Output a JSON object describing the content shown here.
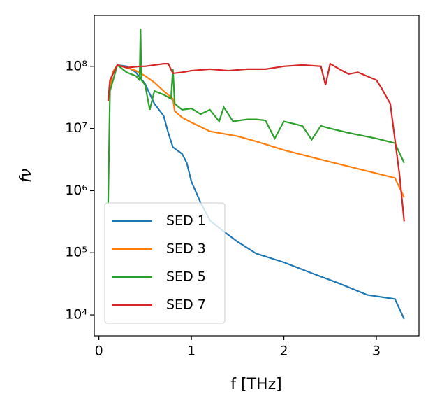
{
  "chart_data": {
    "type": "line",
    "xlabel": "f [THz]",
    "ylabel": "fν",
    "xlim": [
      -0.05,
      3.46
    ],
    "xticks": [
      0,
      1,
      2,
      3
    ],
    "ylim": [
      4600,
      660000000
    ],
    "ylog": true,
    "yticks": [
      {
        "value": 10000,
        "label": "10⁴"
      },
      {
        "value": 100000,
        "label": "10⁵"
      },
      {
        "value": 1000000,
        "label": "10⁶"
      },
      {
        "value": 10000000,
        "label": "10⁷"
      },
      {
        "value": 100000000,
        "label": "10⁸"
      }
    ],
    "legend": "lower left",
    "series": [
      {
        "name": "SED 1",
        "color": "#1f77b4",
        "x": [
          0.1,
          0.15,
          0.2,
          0.3,
          0.4,
          0.5,
          0.6,
          0.7,
          0.75,
          0.8,
          0.9,
          0.95,
          1.0,
          1.1,
          1.2,
          1.35,
          1.5,
          1.7,
          2.0,
          2.3,
          2.6,
          2.9,
          3.2,
          3.3
        ],
        "values": [
          30000000,
          80000000,
          105000000,
          100000000,
          80000000,
          52000000,
          25000000,
          16000000,
          8500000,
          5000000,
          3900000,
          2800000,
          1400000,
          640000,
          330000,
          220000,
          150000,
          97000,
          70000,
          47000,
          32000,
          21000,
          18000,
          8600
        ]
      },
      {
        "name": "SED 3",
        "color": "#ff7f0e",
        "x": [
          0.1,
          0.15,
          0.2,
          0.3,
          0.4,
          0.5,
          0.6,
          0.7,
          0.8,
          0.82,
          0.9,
          1.0,
          1.2,
          1.5,
          1.7,
          2.0,
          2.5,
          3.0,
          3.2,
          3.3
        ],
        "values": [
          30000000,
          80000000,
          105000000,
          95000000,
          85000000,
          70000000,
          55000000,
          40000000,
          30000000,
          19000000,
          15000000,
          12500000,
          9000000,
          7500000,
          6200000,
          4500000,
          2900000,
          1900000,
          1600000,
          780000
        ]
      },
      {
        "name": "SED 5",
        "color": "#2ca02c",
        "x": [
          0.1,
          0.12,
          0.2,
          0.3,
          0.4,
          0.44,
          0.45,
          0.46,
          0.5,
          0.55,
          0.6,
          0.7,
          0.78,
          0.8,
          0.82,
          0.9,
          1.0,
          1.1,
          1.2,
          1.3,
          1.35,
          1.45,
          1.6,
          1.7,
          1.8,
          1.9,
          2.0,
          2.2,
          2.3,
          2.4,
          2.5,
          2.7,
          3.0,
          3.2,
          3.3
        ],
        "values": [
          600000,
          40000000,
          105000000,
          80000000,
          70000000,
          60000000,
          400000000,
          60000000,
          50000000,
          20000000,
          40000000,
          35000000,
          30000000,
          90000000,
          25000000,
          20000000,
          21000000,
          17000000,
          20000000,
          13000000,
          22000000,
          13000000,
          14000000,
          14000000,
          13500000,
          6900000,
          13000000,
          11000000,
          6600000,
          11000000,
          10000000,
          8500000,
          6900000,
          5800000,
          2800000
        ]
      },
      {
        "name": "SED 7",
        "color": "#d62728",
        "x": [
          0.1,
          0.12,
          0.2,
          0.3,
          0.45,
          0.5,
          0.6,
          0.7,
          0.75,
          0.8,
          0.9,
          1.0,
          1.2,
          1.4,
          1.6,
          1.8,
          2.0,
          2.2,
          2.4,
          2.45,
          2.5,
          2.6,
          2.7,
          2.8,
          3.0,
          3.05,
          3.15,
          3.25,
          3.3
        ],
        "values": [
          28000000,
          60000000,
          105000000,
          95000000,
          100000000,
          100000000,
          105000000,
          110000000,
          110000000,
          77000000,
          80000000,
          85000000,
          90000000,
          85000000,
          90000000,
          90000000,
          100000000,
          105000000,
          100000000,
          50000000,
          110000000,
          90000000,
          75000000,
          80000000,
          60000000,
          46000000,
          25000000,
          1800000,
          320000
        ]
      }
    ]
  }
}
